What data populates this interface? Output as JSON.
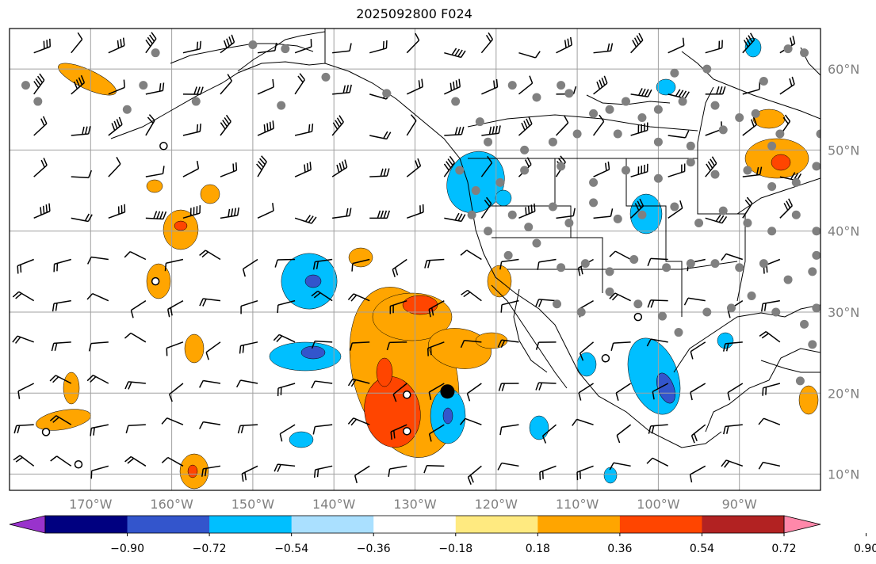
{
  "title": "2025092800 F024",
  "map": {
    "lon_range": [
      -180,
      -80
    ],
    "lat_range": [
      8,
      65
    ],
    "lon_ticks": [
      {
        "value": -170,
        "label": "170°W"
      },
      {
        "value": -160,
        "label": "160°W"
      },
      {
        "value": -150,
        "label": "150°W"
      },
      {
        "value": -140,
        "label": "140°W"
      },
      {
        "value": -130,
        "label": "130°W"
      },
      {
        "value": -120,
        "label": "120°W"
      },
      {
        "value": -110,
        "label": "110°W"
      },
      {
        "value": -100,
        "label": "100°W"
      },
      {
        "value": -90,
        "label": "90°W"
      }
    ],
    "lat_ticks": [
      {
        "value": 10,
        "label": "10°N"
      },
      {
        "value": 20,
        "label": "20°N"
      },
      {
        "value": 30,
        "label": "30°N"
      },
      {
        "value": 40,
        "label": "40°N"
      },
      {
        "value": 50,
        "label": "50°N"
      },
      {
        "value": 60,
        "label": "60°N"
      }
    ],
    "gridlines": true,
    "tick_color": "#808080"
  },
  "colorbar": {
    "colors": [
      "#9933cc",
      "#000080",
      "#3355cc",
      "#00bfff",
      "#aae0ff",
      "#ffffff",
      "#ffea80",
      "#ffa500",
      "#ff4500",
      "#b22222",
      "#ff88aa"
    ],
    "tick_labels": [
      "−0.90",
      "−0.72",
      "−0.54",
      "−0.36",
      "−0.18",
      "0.18",
      "0.36",
      "0.54",
      "0.72",
      "0.90"
    ],
    "extend": "both"
  },
  "markers": {
    "large_black": {
      "lon": -126,
      "lat": 20.2
    },
    "open_circles": [
      {
        "lon": -162,
        "lat": 33.8
      },
      {
        "lon": -175.5,
        "lat": 15.2
      },
      {
        "lon": -171.5,
        "lat": 11.2
      },
      {
        "lon": -131,
        "lat": 19.8
      },
      {
        "lon": -131,
        "lat": 15.3
      },
      {
        "lon": -102.5,
        "lat": 29.4
      },
      {
        "lon": -106.5,
        "lat": 24.3
      },
      {
        "lon": -161,
        "lat": 50.5
      }
    ],
    "stations_color": "#808080",
    "stations": [
      [
        -162,
        62
      ],
      [
        -150,
        63
      ],
      [
        -146,
        62.5
      ],
      [
        -163.5,
        58
      ],
      [
        -157,
        56
      ],
      [
        -146.5,
        55.5
      ],
      [
        -165.5,
        55
      ],
      [
        -178,
        58
      ],
      [
        -176.5,
        56
      ],
      [
        -141,
        59
      ],
      [
        -133.5,
        57
      ],
      [
        -125,
        56
      ],
      [
        -122,
        53.5
      ],
      [
        -118,
        58
      ],
      [
        -115,
        56.5
      ],
      [
        -112,
        58
      ],
      [
        -111,
        57
      ],
      [
        -108,
        54.5
      ],
      [
        -106,
        55
      ],
      [
        -104,
        56
      ],
      [
        -102,
        54
      ],
      [
        -100,
        55
      ],
      [
        -97,
        56
      ],
      [
        -93,
        55.5
      ],
      [
        -90,
        54
      ],
      [
        -88,
        54.5
      ],
      [
        -98,
        59.5
      ],
      [
        -94,
        60
      ],
      [
        -87,
        58.5
      ],
      [
        -85,
        52
      ],
      [
        -121,
        51
      ],
      [
        -116.5,
        50
      ],
      [
        -113,
        51
      ],
      [
        -110,
        52
      ],
      [
        -105,
        52
      ],
      [
        -100,
        51
      ],
      [
        -96,
        50.5
      ],
      [
        -92,
        52.5
      ],
      [
        -86,
        50.5
      ],
      [
        -82,
        62
      ],
      [
        -84,
        62.5
      ],
      [
        -124.5,
        47.5
      ],
      [
        -122.5,
        45
      ],
      [
        -119.5,
        46
      ],
      [
        -116.5,
        47.5
      ],
      [
        -112,
        48
      ],
      [
        -108,
        46
      ],
      [
        -104,
        47.5
      ],
      [
        -100,
        46.5
      ],
      [
        -96,
        48.5
      ],
      [
        -93,
        47
      ],
      [
        -89,
        47.5
      ],
      [
        -86,
        45.5
      ],
      [
        -83,
        46
      ],
      [
        -80.5,
        48
      ],
      [
        -80,
        52
      ],
      [
        -123,
        42
      ],
      [
        -121,
        40
      ],
      [
        -118,
        42
      ],
      [
        -116,
        40.5
      ],
      [
        -113,
        43
      ],
      [
        -111,
        41
      ],
      [
        -108,
        43.5
      ],
      [
        -105,
        41.5
      ],
      [
        -102,
        42
      ],
      [
        -98,
        43
      ],
      [
        -95,
        41
      ],
      [
        -92,
        42.5
      ],
      [
        -89,
        41
      ],
      [
        -86,
        40
      ],
      [
        -83,
        42
      ],
      [
        -80.5,
        40
      ],
      [
        -118.5,
        37
      ],
      [
        -115,
        38.5
      ],
      [
        -112,
        35.5
      ],
      [
        -109,
        36
      ],
      [
        -106,
        35
      ],
      [
        -103,
        36.5
      ],
      [
        -99,
        35.5
      ],
      [
        -96,
        36
      ],
      [
        -93,
        36
      ],
      [
        -90,
        35.5
      ],
      [
        -87,
        36
      ],
      [
        -84,
        34
      ],
      [
        -81,
        35
      ],
      [
        -112.5,
        31
      ],
      [
        -109.5,
        30
      ],
      [
        -106,
        32.5
      ],
      [
        -102.5,
        31
      ],
      [
        -99.5,
        29.5
      ],
      [
        -97.5,
        27.5
      ],
      [
        -94,
        30
      ],
      [
        -91,
        30.5
      ],
      [
        -88.5,
        32
      ],
      [
        -85.5,
        30
      ],
      [
        -82,
        28.5
      ],
      [
        -81,
        26
      ],
      [
        -82.5,
        21.5
      ],
      [
        -80.5,
        37
      ],
      [
        -80.5,
        30.5
      ]
    ]
  }
}
